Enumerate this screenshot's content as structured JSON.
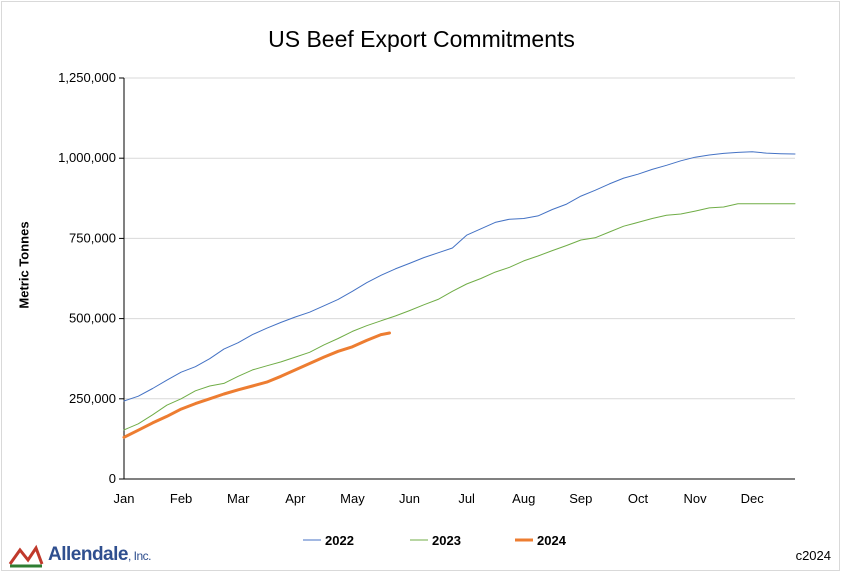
{
  "chart_data": {
    "type": "line",
    "title": "US Beef Export Commitments",
    "xlabel": "",
    "ylabel": "Metric Tonnes",
    "ylim": [
      0,
      1250000
    ],
    "yticks": [
      "0",
      "250,000",
      "500,000",
      "750,000",
      "1,000,000",
      "1,250,000"
    ],
    "ytick_values": [
      0,
      250000,
      500000,
      750000,
      1000000,
      1250000
    ],
    "xticks": [
      "Jan",
      "Feb",
      "Mar",
      "Apr",
      "May",
      "Jun",
      "Jul",
      "Aug",
      "Sep",
      "Oct",
      "Nov",
      "Dec"
    ],
    "grid": "horizontal",
    "legend": "bottom",
    "series": [
      {
        "name": "2022",
        "color": "#4472c4",
        "width": 1,
        "x": [
          0,
          0.25,
          0.5,
          0.75,
          1,
          1.25,
          1.5,
          1.75,
          2,
          2.25,
          2.5,
          2.75,
          3,
          3.25,
          3.5,
          3.75,
          4,
          4.25,
          4.5,
          4.75,
          5,
          5.25,
          5.5,
          5.75,
          6,
          6.25,
          6.5,
          6.75,
          7,
          7.25,
          7.5,
          7.75,
          8,
          8.25,
          8.5,
          8.75,
          9,
          9.25,
          9.5,
          9.75,
          10,
          10.25,
          10.5,
          10.75,
          11,
          11.25,
          11.5,
          11.75
        ],
        "values": [
          243000,
          258000,
          282000,
          308000,
          333000,
          350000,
          375000,
          405000,
          425000,
          450000,
          470000,
          488000,
          505000,
          520000,
          540000,
          560000,
          585000,
          612000,
          635000,
          655000,
          672000,
          690000,
          705000,
          720000,
          760000,
          780000,
          800000,
          810000,
          812000,
          820000,
          840000,
          857000,
          882000,
          900000,
          920000,
          938000,
          950000,
          965000,
          978000,
          992000,
          1003000,
          1010000,
          1015000,
          1018000,
          1020000,
          1016000,
          1014000,
          1013000
        ]
      },
      {
        "name": "2023",
        "color": "#70ad47",
        "width": 1,
        "x": [
          0,
          0.25,
          0.5,
          0.75,
          1,
          1.25,
          1.5,
          1.75,
          2,
          2.25,
          2.5,
          2.75,
          3,
          3.25,
          3.5,
          3.75,
          4,
          4.25,
          4.5,
          4.75,
          5,
          5.25,
          5.5,
          5.75,
          6,
          6.25,
          6.5,
          6.75,
          7,
          7.25,
          7.5,
          7.75,
          8,
          8.25,
          8.5,
          8.75,
          9,
          9.25,
          9.5,
          9.75,
          10,
          10.25,
          10.5,
          10.75,
          11,
          11.25,
          11.5,
          11.75
        ],
        "values": [
          153000,
          172000,
          200000,
          230000,
          250000,
          275000,
          290000,
          298000,
          320000,
          340000,
          353000,
          365000,
          380000,
          395000,
          418000,
          438000,
          460000,
          478000,
          493000,
          508000,
          525000,
          543000,
          560000,
          585000,
          608000,
          625000,
          645000,
          660000,
          680000,
          695000,
          712000,
          728000,
          745000,
          752000,
          770000,
          788000,
          800000,
          812000,
          822000,
          826000,
          835000,
          845000,
          848000,
          858000,
          858000,
          858000,
          858000,
          858000
        ]
      },
      {
        "name": "2024",
        "color": "#ed7d31",
        "width": 3,
        "x": [
          0,
          0.25,
          0.5,
          0.75,
          1,
          1.25,
          1.5,
          1.75,
          2,
          2.25,
          2.5,
          2.75,
          3,
          3.25,
          3.5,
          3.75,
          4,
          4.25,
          4.5,
          4.65
        ],
        "values": [
          130000,
          152000,
          175000,
          195000,
          218000,
          235000,
          250000,
          265000,
          278000,
          290000,
          302000,
          320000,
          340000,
          360000,
          380000,
          398000,
          412000,
          432000,
          450000,
          455000
        ]
      }
    ]
  },
  "footer": {
    "logo_text": "Allendale",
    "logo_suffix": ", Inc.",
    "copyright": "c2024"
  }
}
